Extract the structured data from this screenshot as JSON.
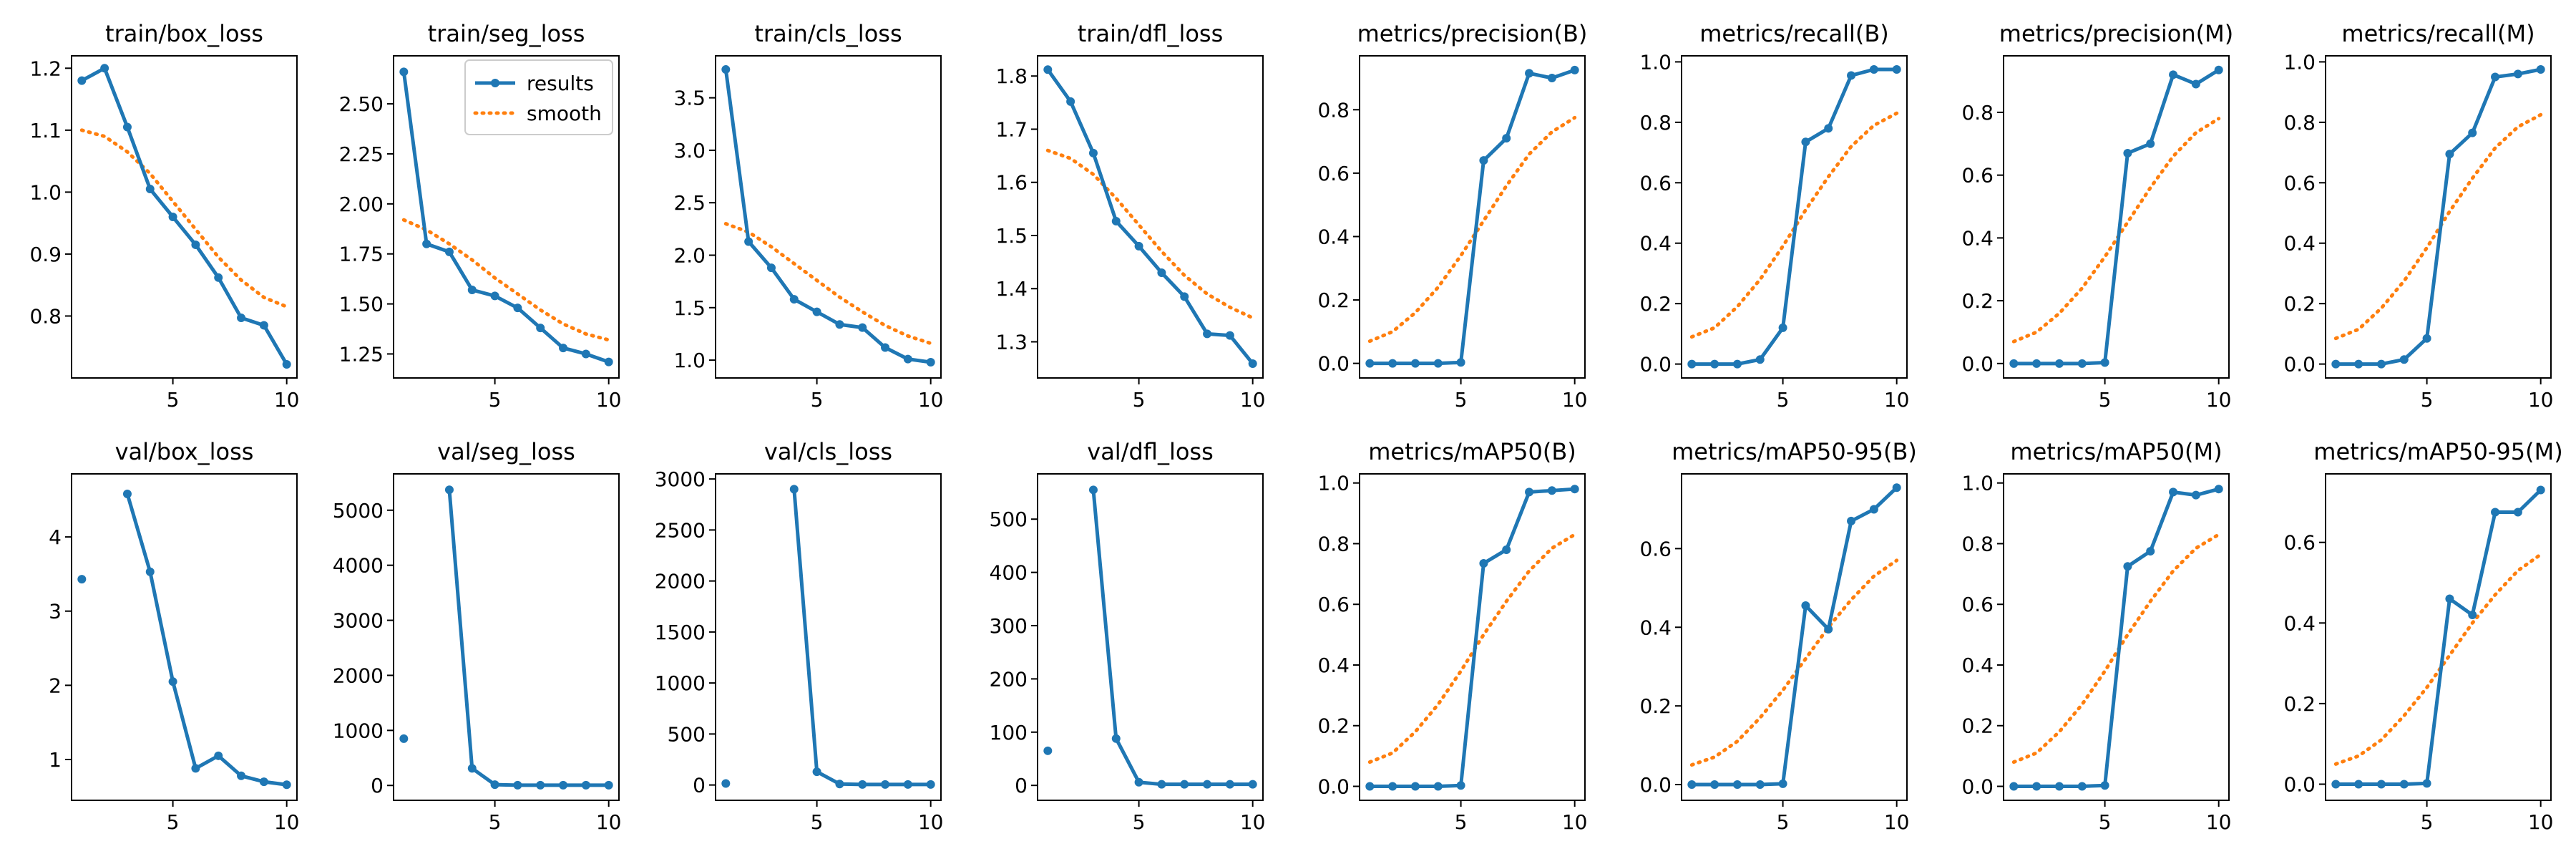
{
  "colors": {
    "results": "#1f77b4",
    "smooth": "#ff7f0e",
    "axes": "#000000",
    "background": "#ffffff"
  },
  "legend": {
    "entries": [
      "results",
      "smooth"
    ],
    "panel": "train/seg_loss",
    "placement": "upper-right"
  },
  "chart_data": [
    {
      "type": "line",
      "title": "train/box_loss",
      "x": [
        1,
        2,
        3,
        4,
        5,
        6,
        7,
        8,
        9,
        10
      ],
      "xlim": [
        0.55,
        10.45
      ],
      "ylim": [
        0.7,
        1.22
      ],
      "xticks": [
        5,
        10
      ],
      "xtick_labels": [
        "5",
        "10"
      ],
      "yticks": [
        0.8,
        0.9,
        1.0,
        1.1,
        1.2
      ],
      "ytick_labels": [
        "0.8",
        "0.9",
        "1.0",
        "1.1",
        "1.2"
      ],
      "series": [
        {
          "name": "results",
          "style": "line-marker",
          "values": [
            1.18,
            1.2,
            1.105,
            1.005,
            0.96,
            0.915,
            0.862,
            0.797,
            0.785,
            0.722
          ]
        },
        {
          "name": "smooth",
          "style": "dotted",
          "values": [
            1.1,
            1.09,
            1.065,
            1.03,
            0.985,
            0.94,
            0.895,
            0.858,
            0.83,
            0.815
          ]
        }
      ]
    },
    {
      "type": "line",
      "title": "train/seg_loss",
      "x": [
        1,
        2,
        3,
        4,
        5,
        6,
        7,
        8,
        9,
        10
      ],
      "xlim": [
        0.55,
        10.45
      ],
      "ylim": [
        1.13,
        2.74
      ],
      "xticks": [
        5,
        10
      ],
      "xtick_labels": [
        "5",
        "10"
      ],
      "yticks": [
        1.25,
        1.5,
        1.75,
        2.0,
        2.25,
        2.5
      ],
      "ytick_labels": [
        "1.25",
        "1.50",
        "1.75",
        "2.00",
        "2.25",
        "2.50"
      ],
      "series": [
        {
          "name": "results",
          "style": "line-marker",
          "values": [
            2.66,
            1.8,
            1.76,
            1.57,
            1.54,
            1.48,
            1.38,
            1.28,
            1.25,
            1.21
          ]
        },
        {
          "name": "smooth",
          "style": "dotted",
          "values": [
            1.92,
            1.87,
            1.8,
            1.72,
            1.63,
            1.55,
            1.47,
            1.4,
            1.35,
            1.32
          ]
        }
      ]
    },
    {
      "type": "line",
      "title": "train/cls_loss",
      "x": [
        1,
        2,
        3,
        4,
        5,
        6,
        7,
        8,
        9,
        10
      ],
      "xlim": [
        0.55,
        10.45
      ],
      "ylim": [
        0.83,
        3.9
      ],
      "xticks": [
        5,
        10
      ],
      "xtick_labels": [
        "5",
        "10"
      ],
      "yticks": [
        1.0,
        1.5,
        2.0,
        2.5,
        3.0,
        3.5
      ],
      "ytick_labels": [
        "1.0",
        "1.5",
        "2.0",
        "2.5",
        "3.0",
        "3.5"
      ],
      "series": [
        {
          "name": "results",
          "style": "line-marker",
          "values": [
            3.77,
            2.13,
            1.88,
            1.58,
            1.46,
            1.34,
            1.31,
            1.12,
            1.01,
            0.98
          ]
        },
        {
          "name": "smooth",
          "style": "dotted",
          "values": [
            2.3,
            2.22,
            2.08,
            1.92,
            1.76,
            1.6,
            1.46,
            1.33,
            1.23,
            1.16
          ]
        }
      ]
    },
    {
      "type": "line",
      "title": "train/dfl_loss",
      "x": [
        1,
        2,
        3,
        4,
        5,
        6,
        7,
        8,
        9,
        10
      ],
      "xlim": [
        0.55,
        10.45
      ],
      "ylim": [
        1.232,
        1.838
      ],
      "xticks": [
        5,
        10
      ],
      "xtick_labels": [
        "5",
        "10"
      ],
      "yticks": [
        1.3,
        1.4,
        1.5,
        1.6,
        1.7,
        1.8
      ],
      "ytick_labels": [
        "1.3",
        "1.4",
        "1.5",
        "1.6",
        "1.7",
        "1.8"
      ],
      "series": [
        {
          "name": "results",
          "style": "line-marker",
          "values": [
            1.812,
            1.752,
            1.655,
            1.527,
            1.48,
            1.43,
            1.385,
            1.315,
            1.312,
            1.259
          ]
        },
        {
          "name": "smooth",
          "style": "dotted",
          "values": [
            1.66,
            1.645,
            1.615,
            1.57,
            1.52,
            1.47,
            1.425,
            1.39,
            1.365,
            1.345
          ]
        }
      ]
    },
    {
      "type": "line",
      "title": "metrics/precision(B)",
      "x": [
        1,
        2,
        3,
        4,
        5,
        6,
        7,
        8,
        9,
        10
      ],
      "xlim": [
        0.55,
        10.45
      ],
      "ylim": [
        -0.046,
        0.97
      ],
      "xticks": [
        5,
        10
      ],
      "xtick_labels": [
        "5",
        "10"
      ],
      "yticks": [
        0,
        0.2,
        0.4,
        0.6,
        0.8
      ],
      "ytick_labels": [
        "0.0",
        "0.2",
        "0.4",
        "0.6",
        "0.8"
      ],
      "series": [
        {
          "name": "results",
          "style": "line-marker",
          "values": [
            0,
            0,
            0,
            0,
            0.003,
            0.64,
            0.71,
            0.915,
            0.9,
            0.925
          ]
        },
        {
          "name": "smooth",
          "style": "dotted",
          "values": [
            0.07,
            0.1,
            0.16,
            0.24,
            0.34,
            0.45,
            0.56,
            0.66,
            0.73,
            0.775
          ]
        }
      ]
    },
    {
      "type": "line",
      "title": "metrics/recall(B)",
      "x": [
        1,
        2,
        3,
        4,
        5,
        6,
        7,
        8,
        9,
        10
      ],
      "xlim": [
        0.55,
        10.45
      ],
      "ylim": [
        -0.046,
        1.02
      ],
      "xticks": [
        5,
        10
      ],
      "xtick_labels": [
        "5",
        "10"
      ],
      "yticks": [
        0,
        0.2,
        0.4,
        0.6,
        0.8,
        1.0
      ],
      "ytick_labels": [
        "0.0",
        "0.2",
        "0.4",
        "0.6",
        "0.8",
        "1.0"
      ],
      "series": [
        {
          "name": "results",
          "style": "line-marker",
          "values": [
            0,
            0,
            0,
            0.015,
            0.12,
            0.735,
            0.78,
            0.955,
            0.975,
            0.975
          ]
        },
        {
          "name": "smooth",
          "style": "dotted",
          "values": [
            0.09,
            0.12,
            0.19,
            0.28,
            0.39,
            0.51,
            0.62,
            0.72,
            0.79,
            0.83
          ]
        }
      ]
    },
    {
      "type": "line",
      "title": "metrics/precision(M)",
      "x": [
        1,
        2,
        3,
        4,
        5,
        6,
        7,
        8,
        9,
        10
      ],
      "xlim": [
        0.55,
        10.45
      ],
      "ylim": [
        -0.046,
        0.98
      ],
      "xticks": [
        5,
        10
      ],
      "xtick_labels": [
        "5",
        "10"
      ],
      "yticks": [
        0,
        0.2,
        0.4,
        0.6,
        0.8
      ],
      "ytick_labels": [
        "0.0",
        "0.2",
        "0.4",
        "0.6",
        "0.8"
      ],
      "series": [
        {
          "name": "results",
          "style": "line-marker",
          "values": [
            0,
            0,
            0,
            0,
            0.003,
            0.67,
            0.7,
            0.92,
            0.89,
            0.935
          ]
        },
        {
          "name": "smooth",
          "style": "dotted",
          "values": [
            0.07,
            0.1,
            0.16,
            0.24,
            0.34,
            0.45,
            0.56,
            0.66,
            0.735,
            0.78
          ]
        }
      ]
    },
    {
      "type": "line",
      "title": "metrics/recall(M)",
      "x": [
        1,
        2,
        3,
        4,
        5,
        6,
        7,
        8,
        9,
        10
      ],
      "xlim": [
        0.55,
        10.45
      ],
      "ylim": [
        -0.046,
        1.02
      ],
      "xticks": [
        5,
        10
      ],
      "xtick_labels": [
        "5",
        "10"
      ],
      "yticks": [
        0,
        0.2,
        0.4,
        0.6,
        0.8,
        1.0
      ],
      "ytick_labels": [
        "0.0",
        "0.2",
        "0.4",
        "0.6",
        "0.8",
        "1.0"
      ],
      "series": [
        {
          "name": "results",
          "style": "line-marker",
          "values": [
            0,
            0,
            0,
            0.015,
            0.085,
            0.695,
            0.765,
            0.95,
            0.96,
            0.975
          ]
        },
        {
          "name": "smooth",
          "style": "dotted",
          "values": [
            0.085,
            0.115,
            0.185,
            0.275,
            0.385,
            0.505,
            0.615,
            0.715,
            0.785,
            0.825
          ]
        }
      ]
    },
    {
      "type": "line",
      "title": "val/box_loss",
      "x": [
        1,
        2,
        3,
        4,
        5,
        6,
        7,
        8,
        9,
        10
      ],
      "xlim": [
        0.55,
        10.45
      ],
      "ylim": [
        0.45,
        4.85
      ],
      "xticks": [
        5,
        10
      ],
      "xtick_labels": [
        "5",
        "10"
      ],
      "yticks": [
        1,
        2,
        3,
        4
      ],
      "ytick_labels": [
        "1",
        "2",
        "3",
        "4"
      ],
      "series": [
        {
          "name": "results",
          "style": "line-marker",
          "values": [
            3.43,
            null,
            4.58,
            3.53,
            2.05,
            0.88,
            1.05,
            0.78,
            0.7,
            0.66
          ]
        }
      ]
    },
    {
      "type": "line",
      "title": "val/seg_loss",
      "x": [
        1,
        2,
        3,
        4,
        5,
        6,
        7,
        8,
        9,
        10
      ],
      "xlim": [
        0.55,
        10.45
      ],
      "ylim": [
        -270,
        5660
      ],
      "xticks": [
        5,
        10
      ],
      "xtick_labels": [
        "5",
        "10"
      ],
      "yticks": [
        0,
        1000,
        2000,
        3000,
        4000,
        5000
      ],
      "ytick_labels": [
        "0",
        "1000",
        "2000",
        "3000",
        "4000",
        "5000"
      ],
      "series": [
        {
          "name": "results",
          "style": "line-marker",
          "values": [
            850,
            null,
            5370,
            310,
            15,
            5,
            5,
            5,
            5,
            5
          ]
        }
      ]
    },
    {
      "type": "line",
      "title": "val/cls_loss",
      "x": [
        1,
        2,
        3,
        4,
        5,
        6,
        7,
        8,
        9,
        10
      ],
      "xlim": [
        0.55,
        10.45
      ],
      "ylim": [
        -150,
        3050
      ],
      "xticks": [
        5,
        10
      ],
      "xtick_labels": [
        "5",
        "10"
      ],
      "yticks": [
        0,
        500,
        1000,
        1500,
        2000,
        2500,
        3000
      ],
      "ytick_labels": [
        "0",
        "500",
        "1000",
        "1500",
        "2000",
        "2500",
        "3000"
      ],
      "series": [
        {
          "name": "results",
          "style": "line-marker",
          "values": [
            15,
            null,
            null,
            2900,
            130,
            10,
            5,
            5,
            5,
            5
          ]
        }
      ]
    },
    {
      "type": "line",
      "title": "val/dfl_loss",
      "x": [
        1,
        2,
        3,
        4,
        5,
        6,
        7,
        8,
        9,
        10
      ],
      "xlim": [
        0.55,
        10.45
      ],
      "ylim": [
        -28,
        585
      ],
      "xticks": [
        5,
        10
      ],
      "xtick_labels": [
        "5",
        "10"
      ],
      "yticks": [
        0,
        100,
        200,
        300,
        400,
        500
      ],
      "ytick_labels": [
        "0",
        "100",
        "200",
        "300",
        "400",
        "500"
      ],
      "series": [
        {
          "name": "results",
          "style": "line-marker",
          "values": [
            65,
            null,
            555,
            88,
            6,
            2,
            2,
            2,
            2,
            2
          ]
        }
      ]
    },
    {
      "type": "line",
      "title": "metrics/mAP50(B)",
      "x": [
        1,
        2,
        3,
        4,
        5,
        6,
        7,
        8,
        9,
        10
      ],
      "xlim": [
        0.55,
        10.45
      ],
      "ylim": [
        -0.046,
        1.03
      ],
      "xticks": [
        5,
        10
      ],
      "xtick_labels": [
        "5",
        "10"
      ],
      "yticks": [
        0,
        0.2,
        0.4,
        0.6,
        0.8,
        1.0
      ],
      "ytick_labels": [
        "0.0",
        "0.2",
        "0.4",
        "0.6",
        "0.8",
        "1.0"
      ],
      "series": [
        {
          "name": "results",
          "style": "line-marker",
          "values": [
            0,
            0,
            0,
            0,
            0.003,
            0.735,
            0.78,
            0.97,
            0.975,
            0.98
          ]
        },
        {
          "name": "smooth",
          "style": "dotted",
          "values": [
            0.08,
            0.11,
            0.18,
            0.27,
            0.38,
            0.5,
            0.61,
            0.71,
            0.785,
            0.83
          ]
        }
      ]
    },
    {
      "type": "line",
      "title": "metrics/mAP50-95(B)",
      "x": [
        1,
        2,
        3,
        4,
        5,
        6,
        7,
        8,
        9,
        10
      ],
      "xlim": [
        0.55,
        10.45
      ],
      "ylim": [
        -0.04,
        0.79
      ],
      "xticks": [
        5,
        10
      ],
      "xtick_labels": [
        "5",
        "10"
      ],
      "yticks": [
        0,
        0.2,
        0.4,
        0.6
      ],
      "ytick_labels": [
        "0.0",
        "0.2",
        "0.4",
        "0.6"
      ],
      "series": [
        {
          "name": "results",
          "style": "line-marker",
          "values": [
            0,
            0,
            0,
            0,
            0.002,
            0.455,
            0.395,
            0.67,
            0.7,
            0.755
          ]
        },
        {
          "name": "smooth",
          "style": "dotted",
          "values": [
            0.05,
            0.07,
            0.11,
            0.17,
            0.24,
            0.32,
            0.4,
            0.47,
            0.53,
            0.57
          ]
        }
      ]
    },
    {
      "type": "line",
      "title": "metrics/mAP50(M)",
      "x": [
        1,
        2,
        3,
        4,
        5,
        6,
        7,
        8,
        9,
        10
      ],
      "xlim": [
        0.55,
        10.45
      ],
      "ylim": [
        -0.046,
        1.03
      ],
      "xticks": [
        5,
        10
      ],
      "xtick_labels": [
        "5",
        "10"
      ],
      "yticks": [
        0,
        0.2,
        0.4,
        0.6,
        0.8,
        1.0
      ],
      "ytick_labels": [
        "0.0",
        "0.2",
        "0.4",
        "0.6",
        "0.8",
        "1.0"
      ],
      "series": [
        {
          "name": "results",
          "style": "line-marker",
          "values": [
            0,
            0,
            0,
            0,
            0.003,
            0.725,
            0.775,
            0.97,
            0.96,
            0.98
          ]
        },
        {
          "name": "smooth",
          "style": "dotted",
          "values": [
            0.08,
            0.11,
            0.18,
            0.27,
            0.38,
            0.5,
            0.61,
            0.71,
            0.785,
            0.83
          ]
        }
      ]
    },
    {
      "type": "line",
      "title": "metrics/mAP50-95(M)",
      "x": [
        1,
        2,
        3,
        4,
        5,
        6,
        7,
        8,
        9,
        10
      ],
      "xlim": [
        0.55,
        10.45
      ],
      "ylim": [
        -0.04,
        0.77
      ],
      "xticks": [
        5,
        10
      ],
      "xtick_labels": [
        "5",
        "10"
      ],
      "yticks": [
        0,
        0.2,
        0.4,
        0.6
      ],
      "ytick_labels": [
        "0.0",
        "0.2",
        "0.4",
        "0.6"
      ],
      "series": [
        {
          "name": "results",
          "style": "line-marker",
          "values": [
            0,
            0,
            0,
            0,
            0.002,
            0.46,
            0.42,
            0.675,
            0.675,
            0.73
          ]
        },
        {
          "name": "smooth",
          "style": "dotted",
          "values": [
            0.05,
            0.07,
            0.11,
            0.17,
            0.24,
            0.32,
            0.4,
            0.47,
            0.53,
            0.57
          ]
        }
      ]
    }
  ]
}
